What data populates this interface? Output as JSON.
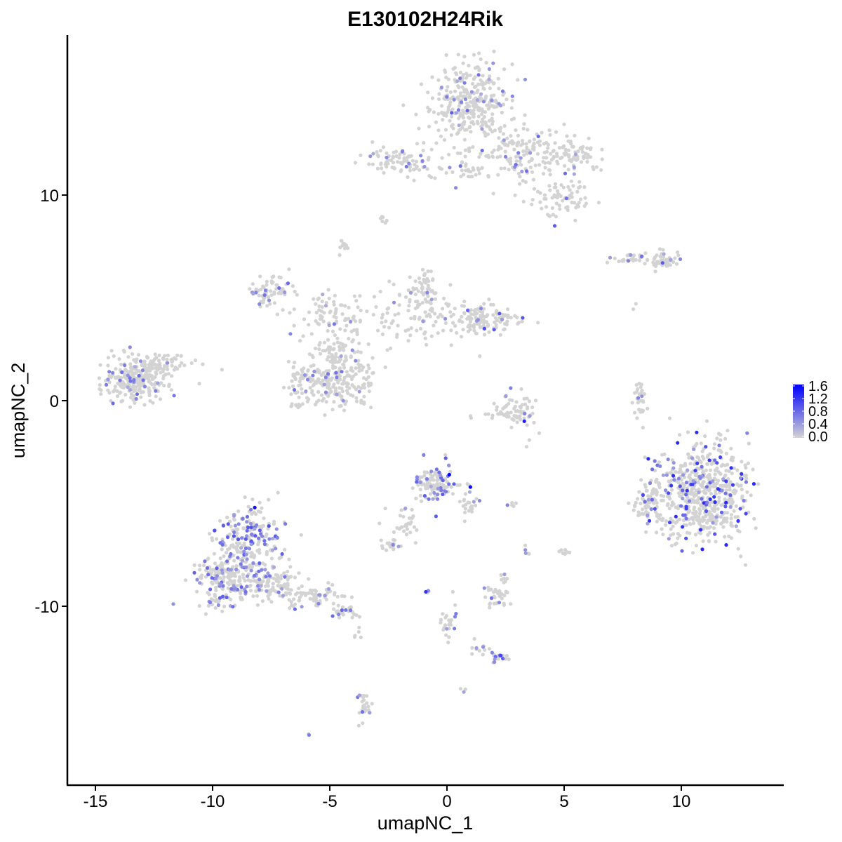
{
  "chart_data": {
    "type": "scatter",
    "title": "E130102H24Rik",
    "xlabel": "umapNC_1",
    "ylabel": "umapNC_2",
    "xlim": [
      -16.5,
      14.5
    ],
    "ylim": [
      -18.5,
      17.5
    ],
    "x_ticks": [
      -15,
      -10,
      -5,
      0,
      5,
      10
    ],
    "x_tick_labels": [
      "-15",
      "-10",
      "-5",
      "0",
      "5",
      "10"
    ],
    "y_ticks": [
      -10,
      0,
      10
    ],
    "y_tick_labels": [
      "-10",
      "0",
      "10"
    ],
    "grid": false,
    "legend": {
      "placement": "right",
      "type": "colorbar",
      "range": [
        0.0,
        1.6
      ],
      "ticks": [
        0.0,
        0.4,
        0.8,
        1.2,
        1.6
      ],
      "tick_labels": [
        "0.0",
        "0.4",
        "0.8",
        "1.2",
        "1.6"
      ],
      "low_color": "#d3d3d3",
      "high_color": "#0000ff"
    },
    "colors": {
      "background_point": "#d3d3d3",
      "expressing_point": "#8a6cf0",
      "high_point": "#2a10f5"
    },
    "clusters": [
      {
        "cx": 1.0,
        "cy": 14.5,
        "sx": 1.1,
        "sy": 1.2,
        "n": 320,
        "expr_frac": 0.08,
        "expr_max": 0.8
      },
      {
        "cx": 3.3,
        "cy": 12.0,
        "sx": 1.4,
        "sy": 0.8,
        "n": 170,
        "expr_frac": 0.06,
        "expr_max": 0.8
      },
      {
        "cx": 4.8,
        "cy": 9.8,
        "sx": 0.8,
        "sy": 0.5,
        "n": 70,
        "expr_frac": 0.05,
        "expr_max": 0.8
      },
      {
        "cx": 5.5,
        "cy": 12.0,
        "sx": 0.7,
        "sy": 0.5,
        "n": 60,
        "expr_frac": 0.04,
        "expr_max": 0.6
      },
      {
        "cx": -2.0,
        "cy": 11.7,
        "sx": 0.9,
        "sy": 0.4,
        "n": 70,
        "expr_frac": 0.07,
        "expr_max": 0.8
      },
      {
        "cx": 0.3,
        "cy": 11.3,
        "sx": 1.3,
        "sy": 0.35,
        "n": 45,
        "expr_frac": 0.03,
        "expr_max": 0.6
      },
      {
        "cx": -4.4,
        "cy": 7.4,
        "sx": 0.2,
        "sy": 0.3,
        "n": 12,
        "expr_frac": 0.1,
        "expr_max": 0.6
      },
      {
        "cx": -2.8,
        "cy": 8.8,
        "sx": 0.2,
        "sy": 0.2,
        "n": 6,
        "expr_frac": 0.1,
        "expr_max": 0.6
      },
      {
        "cx": 9.3,
        "cy": 6.8,
        "sx": 0.5,
        "sy": 0.3,
        "n": 55,
        "expr_frac": 0.05,
        "expr_max": 0.6
      },
      {
        "cx": 7.8,
        "cy": 6.9,
        "sx": 0.7,
        "sy": 0.15,
        "n": 30,
        "expr_frac": 0.1,
        "expr_max": 0.8
      },
      {
        "cx": -7.5,
        "cy": 5.3,
        "sx": 0.6,
        "sy": 0.5,
        "n": 70,
        "expr_frac": 0.1,
        "expr_max": 0.8
      },
      {
        "cx": -5.0,
        "cy": 4.2,
        "sx": 1.0,
        "sy": 0.6,
        "n": 70,
        "expr_frac": 0.02,
        "expr_max": 0.6
      },
      {
        "cx": -1.5,
        "cy": 4.0,
        "sx": 1.6,
        "sy": 0.9,
        "n": 110,
        "expr_frac": 0.02,
        "expr_max": 0.6
      },
      {
        "cx": -1.0,
        "cy": 5.6,
        "sx": 0.4,
        "sy": 0.5,
        "n": 45,
        "expr_frac": 0.03,
        "expr_max": 0.6
      },
      {
        "cx": 1.5,
        "cy": 4.0,
        "sx": 0.9,
        "sy": 0.45,
        "n": 130,
        "expr_frac": 0.07,
        "expr_max": 1.0
      },
      {
        "cx": -4.4,
        "cy": 1.0,
        "sx": 0.9,
        "sy": 0.9,
        "n": 180,
        "expr_frac": 0.07,
        "expr_max": 0.8
      },
      {
        "cx": -6.0,
        "cy": 0.8,
        "sx": 0.6,
        "sy": 0.8,
        "n": 90,
        "expr_frac": 0.05,
        "expr_max": 0.8
      },
      {
        "cx": -4.8,
        "cy": 2.7,
        "sx": 0.6,
        "sy": 0.6,
        "n": 50,
        "expr_frac": 0.04,
        "expr_max": 0.6
      },
      {
        "cx": -13.3,
        "cy": 1.0,
        "sx": 0.8,
        "sy": 0.6,
        "n": 260,
        "expr_frac": 0.08,
        "expr_max": 0.8
      },
      {
        "cx": -12.0,
        "cy": 1.8,
        "sx": 0.7,
        "sy": 0.4,
        "n": 60,
        "expr_frac": 0.06,
        "expr_max": 0.6
      },
      {
        "cx": 3.0,
        "cy": -0.5,
        "sx": 0.5,
        "sy": 0.6,
        "n": 40,
        "expr_frac": 0.1,
        "expr_max": 0.9
      },
      {
        "cx": 2.8,
        "cy": -0.7,
        "sx": 0.8,
        "sy": 0.15,
        "n": 35,
        "expr_frac": 0.05,
        "expr_max": 0.6
      },
      {
        "cx": 8.2,
        "cy": 0.0,
        "sx": 0.2,
        "sy": 0.9,
        "n": 30,
        "expr_frac": 0.05,
        "expr_max": 0.6
      },
      {
        "cx": 10.8,
        "cy": -4.5,
        "sx": 1.3,
        "sy": 1.5,
        "n": 620,
        "expr_frac": 0.15,
        "expr_max": 1.3
      },
      {
        "cx": 8.6,
        "cy": -4.8,
        "sx": 0.4,
        "sy": 0.6,
        "n": 60,
        "expr_frac": 0.05,
        "expr_max": 0.6
      },
      {
        "cx": -0.5,
        "cy": -4.0,
        "sx": 0.55,
        "sy": 0.6,
        "n": 120,
        "expr_frac": 0.15,
        "expr_max": 1.0
      },
      {
        "cx": 1.0,
        "cy": -5.0,
        "sx": 0.3,
        "sy": 0.5,
        "n": 25,
        "expr_frac": 0.08,
        "expr_max": 0.6
      },
      {
        "cx": -1.8,
        "cy": -6.0,
        "sx": 0.5,
        "sy": 0.6,
        "n": 30,
        "expr_frac": 0.04,
        "expr_max": 0.6
      },
      {
        "cx": -2.4,
        "cy": -7.0,
        "sx": 0.3,
        "sy": 0.2,
        "n": 20,
        "expr_frac": 0.08,
        "expr_max": 0.6
      },
      {
        "cx": -8.5,
        "cy": -6.8,
        "sx": 0.8,
        "sy": 1.0,
        "n": 220,
        "expr_frac": 0.25,
        "expr_max": 1.0
      },
      {
        "cx": -9.5,
        "cy": -8.8,
        "sx": 0.8,
        "sy": 0.8,
        "n": 200,
        "expr_frac": 0.22,
        "expr_max": 0.9
      },
      {
        "cx": -7.5,
        "cy": -8.8,
        "sx": 0.6,
        "sy": 0.6,
        "n": 110,
        "expr_frac": 0.12,
        "expr_max": 0.8
      },
      {
        "cx": -5.6,
        "cy": -9.5,
        "sx": 0.8,
        "sy": 0.4,
        "n": 70,
        "expr_frac": 0.1,
        "expr_max": 0.8
      },
      {
        "cx": -4.3,
        "cy": -10.3,
        "sx": 0.4,
        "sy": 0.2,
        "n": 25,
        "expr_frac": 0.12,
        "expr_max": 0.8
      },
      {
        "cx": 2.2,
        "cy": -9.5,
        "sx": 0.35,
        "sy": 0.3,
        "n": 35,
        "expr_frac": 0.1,
        "expr_max": 0.8
      },
      {
        "cx": 2.4,
        "cy": -8.6,
        "sx": 0.1,
        "sy": 0.2,
        "n": 6,
        "expr_frac": 0.2,
        "expr_max": 0.6
      },
      {
        "cx": 0.0,
        "cy": -10.8,
        "sx": 0.25,
        "sy": 0.7,
        "n": 25,
        "expr_frac": 0.1,
        "expr_max": 0.8
      },
      {
        "cx": -0.9,
        "cy": -9.3,
        "sx": 0.1,
        "sy": 0.1,
        "n": 4,
        "expr_frac": 0.4,
        "expr_max": 0.8
      },
      {
        "cx": 2.2,
        "cy": -12.5,
        "sx": 0.3,
        "sy": 0.2,
        "n": 20,
        "expr_frac": 0.3,
        "expr_max": 0.9
      },
      {
        "cx": 1.3,
        "cy": -12.0,
        "sx": 0.4,
        "sy": 0.2,
        "n": 10,
        "expr_frac": 0.1,
        "expr_max": 0.6
      },
      {
        "cx": -3.5,
        "cy": -14.8,
        "sx": 0.2,
        "sy": 0.6,
        "n": 25,
        "expr_frac": 0.12,
        "expr_max": 0.8
      },
      {
        "cx": 3.4,
        "cy": -7.5,
        "sx": 0.1,
        "sy": 0.2,
        "n": 5,
        "expr_frac": 0.1,
        "expr_max": 0.6
      },
      {
        "cx": 5.0,
        "cy": -7.3,
        "sx": 0.15,
        "sy": 0.2,
        "n": 8,
        "expr_frac": 0.1,
        "expr_max": 0.6
      },
      {
        "cx": 2.8,
        "cy": -5.0,
        "sx": 0.15,
        "sy": 0.1,
        "n": 5,
        "expr_frac": 0.3,
        "expr_max": 0.8
      },
      {
        "cx": 0.7,
        "cy": -14.1,
        "sx": 0.1,
        "sy": 0.1,
        "n": 3,
        "expr_frac": 0.3,
        "expr_max": 0.6
      },
      {
        "cx": -6.0,
        "cy": -16.3,
        "sx": 0.1,
        "sy": 0.1,
        "n": 2,
        "expr_frac": 0.5,
        "expr_max": 0.8
      },
      {
        "cx": -3.8,
        "cy": -11.3,
        "sx": 0.3,
        "sy": 0.3,
        "n": 5,
        "expr_frac": 0.0,
        "expr_max": 0.0
      },
      {
        "cx": 3.6,
        "cy": -1.9,
        "sx": 0.3,
        "sy": 0.3,
        "n": 3,
        "expr_frac": 0.0,
        "expr_max": 0.0
      },
      {
        "cx": 8.0,
        "cy": 4.7,
        "sx": 0.2,
        "sy": 0.2,
        "n": 2,
        "expr_frac": 0.0,
        "expr_max": 0.0
      }
    ],
    "high_points": [
      {
        "x": -8.2,
        "y": -5.2,
        "v": 1.5
      },
      {
        "x": 0.1,
        "y": -3.6,
        "v": 1.6
      },
      {
        "x": 1.0,
        "y": -4.2,
        "v": 1.5
      },
      {
        "x": 3.3,
        "y": -1.0,
        "v": 1.4
      },
      {
        "x": -0.9,
        "y": -9.3,
        "v": 1.2
      },
      {
        "x": 11.2,
        "y": -2.9,
        "v": 1.2
      },
      {
        "x": 10.6,
        "y": -3.4,
        "v": 1.1
      },
      {
        "x": 12.2,
        "y": -4.1,
        "v": 1.1
      },
      {
        "x": 10.2,
        "y": -6.7,
        "v": 1.0
      },
      {
        "x": 2.3,
        "y": -12.4,
        "v": 1.1
      },
      {
        "x": -7.6,
        "y": -6.1,
        "v": 1.0
      },
      {
        "x": 1.6,
        "y": 3.5,
        "v": 1.0
      },
      {
        "x": 0.2,
        "y": 14.0,
        "v": 0.9
      },
      {
        "x": 4.6,
        "y": 8.5,
        "v": 0.9
      },
      {
        "x": 9.2,
        "y": 6.7,
        "v": 0.9
      }
    ]
  }
}
